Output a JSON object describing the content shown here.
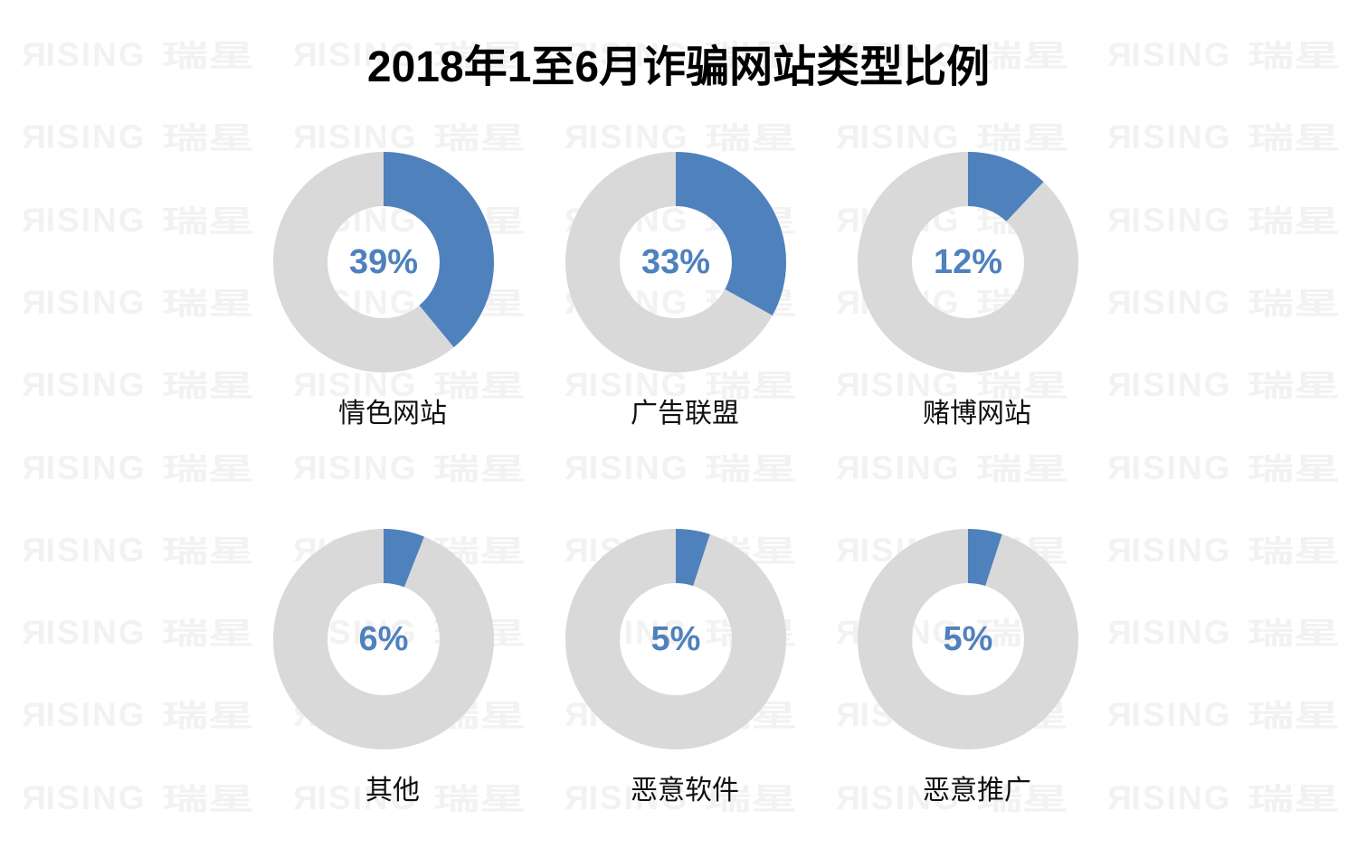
{
  "watermark": {
    "latin": "RISING",
    "cjk": "瑞星",
    "color": "#F2F2F2"
  },
  "colors": {
    "slice_blue": "#4F81BD",
    "ring_gray": "#D9D9D9",
    "percent_text": "#4F81BD",
    "title_text": "#000000",
    "category_text": "#111111"
  },
  "chart_data": {
    "type": "pie",
    "subtype": "donut-grid",
    "title": "2018年1至6月诈骗网站类型比例",
    "unit": "%",
    "categories": [
      "情色网站",
      "广告联盟",
      "赌博网站",
      "其他",
      "恶意软件",
      "恶意推广"
    ],
    "values": [
      39,
      33,
      12,
      6,
      5,
      5
    ],
    "labels": [
      "39%",
      "33%",
      "12%",
      "6%",
      "5%",
      "5%"
    ],
    "donut_style": {
      "start_angle_deg": 0,
      "direction": "clockwise",
      "hole_ratio": 0.51,
      "filled_color": "#4F81BD",
      "remainder_color": "#D9D9D9",
      "legend": "none",
      "grid": "off"
    }
  }
}
